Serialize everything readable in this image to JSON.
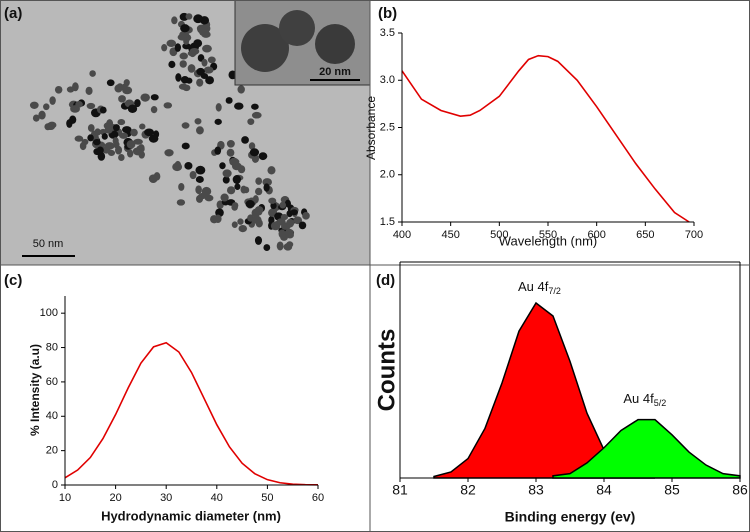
{
  "image_panel": {
    "panel_label": "(a)",
    "scale_bar": "50 nm",
    "inset_scale_bar": "20 nm"
  },
  "chart_data": [
    {
      "type": "line",
      "panel_label": "(b)",
      "x_label": "Wavelength (nm)",
      "y_label": "Absorbance",
      "x": [
        400,
        420,
        440,
        460,
        470,
        480,
        500,
        520,
        530,
        540,
        550,
        560,
        580,
        600,
        620,
        640,
        660,
        680,
        695
      ],
      "values": [
        3.1,
        2.8,
        2.68,
        2.62,
        2.63,
        2.68,
        2.83,
        3.1,
        3.22,
        3.26,
        3.25,
        3.2,
        3.0,
        2.72,
        2.42,
        2.12,
        1.85,
        1.6,
        1.5
      ],
      "color": "#e00000",
      "xlim": [
        400,
        700
      ],
      "xticks": [
        400,
        450,
        500,
        550,
        600,
        650,
        700
      ],
      "ylim": [
        1.5,
        3.5
      ],
      "yticks": [
        1.5,
        {
          "value": 2,
          "label": "2.0"
        },
        2.5,
        {
          "value": 3,
          "label": "3.0"
        },
        3.5
      ]
    },
    {
      "type": "line",
      "panel_label": "(c)",
      "x_label": "Hydrodynamic diameter (nm)",
      "y_label": "% Intensity (a.u)",
      "x": [
        10,
        12.5,
        15,
        17.5,
        20,
        22.5,
        25,
        27.5,
        30,
        32.5,
        35,
        37.5,
        40,
        42.5,
        45,
        47.5,
        50,
        52.5,
        55,
        57.5,
        60
      ],
      "values": [
        4.2,
        8.7,
        16.0,
        27.0,
        41.0,
        56.6,
        70.9,
        80.4,
        82.8,
        77.4,
        65.5,
        50.3,
        35.1,
        22.2,
        12.7,
        6.6,
        3.1,
        1.3,
        0.5,
        0.2,
        0.1
      ],
      "color": "#e00000",
      "xlim": [
        10,
        60
      ],
      "xticks": [
        10,
        20,
        30,
        40,
        50,
        60
      ],
      "ylim": [
        0,
        110
      ],
      "yticks": [
        0,
        20,
        40,
        60,
        80,
        100
      ]
    },
    {
      "type": "area",
      "panel_label": "(d)",
      "x_label": "Binding energy (ev)",
      "y_label": "Counts",
      "series": [
        {
          "color": "#ff0000",
          "x": [
            81.5,
            81.75,
            82.0,
            82.25,
            82.5,
            82.75,
            83.0,
            83.25,
            83.5,
            83.75,
            84.0,
            84.25,
            84.5,
            84.75
          ],
          "values": [
            0.007,
            0.028,
            0.09,
            0.23,
            0.44,
            0.68,
            0.81,
            0.75,
            0.54,
            0.3,
            0.13,
            0.05,
            0.01,
            0.0
          ]
        },
        {
          "color": "#00ff00",
          "x": [
            83.25,
            83.5,
            83.75,
            84.0,
            84.25,
            84.5,
            84.75,
            85.0,
            85.25,
            85.5,
            85.75,
            86.0
          ],
          "values": [
            0.01,
            0.02,
            0.07,
            0.14,
            0.22,
            0.27,
            0.27,
            0.2,
            0.12,
            0.06,
            0.02,
            0.01
          ]
        }
      ],
      "annotations": [
        {
          "text": "Au 4f",
          "sub": "7/2",
          "x": 83.05,
          "y": 0.88
        },
        {
          "text": "Au 4f",
          "sub": "5/2",
          "x": 84.6,
          "y": 0.36
        }
      ],
      "xlim": [
        81,
        86
      ],
      "xticks": [
        81,
        82,
        83,
        84,
        85,
        86
      ],
      "ylim": [
        0,
        1
      ]
    }
  ]
}
